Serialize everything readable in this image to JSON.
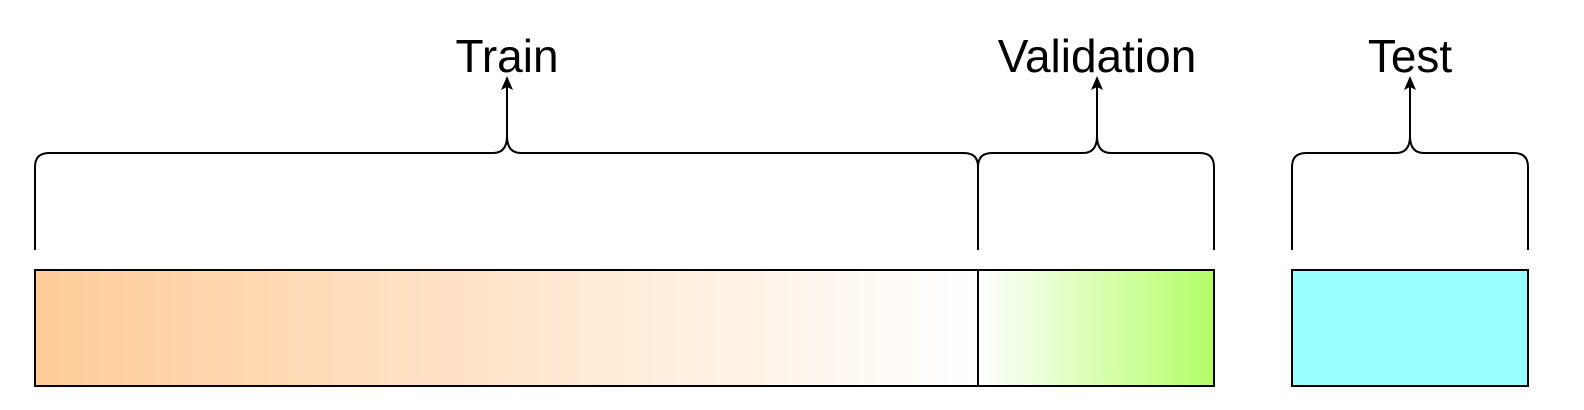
{
  "segments": {
    "train": {
      "label": "Train",
      "fill_start": "#ffcc99",
      "fill_end": "#ffffff"
    },
    "validation": {
      "label": "Validation",
      "fill_start": "#ffffff",
      "fill_end": "#b3ff66"
    },
    "test": {
      "label": "Test",
      "fill": "#99ffff"
    }
  },
  "colors": {
    "stroke": "#000000",
    "background": "#ffffff"
  }
}
